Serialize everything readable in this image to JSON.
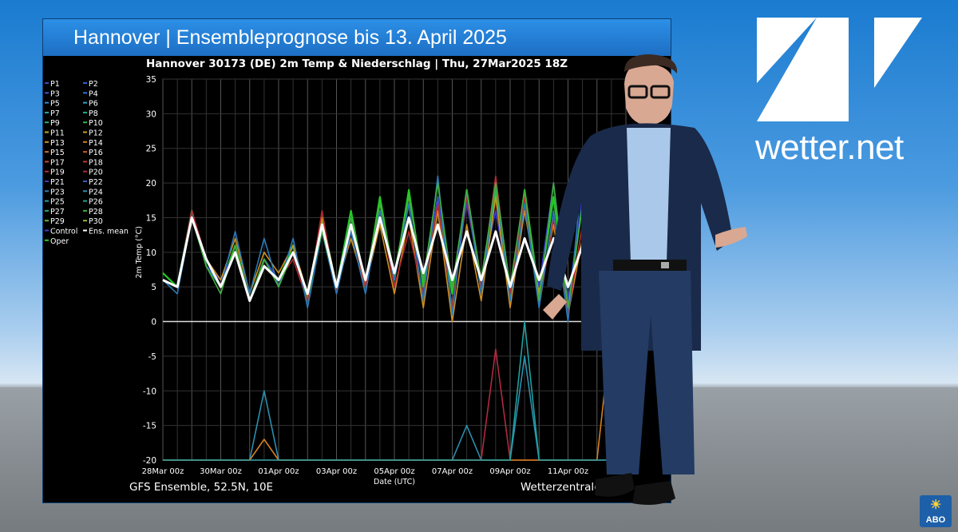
{
  "header": {
    "title": "Hannover | Ensembleprognose bis 13. April 2025"
  },
  "brand": {
    "logo_text": "wetter.net",
    "abo_label": "ABO",
    "accent": "#1d6fc4"
  },
  "footer": {
    "left": "GFS Ensemble, 52.5N, 10E",
    "right": "Wetterzentrale"
  },
  "chart_data": {
    "type": "line",
    "title": "Hannover 30173 (DE)  2m Temp & Niederschlag | Thu, 27Mar2025 18Z",
    "xlabel": "Date (UTC)",
    "ylabel": "2m Temp (°C)",
    "ylim": [
      -20,
      35
    ],
    "yticks": [
      35,
      30,
      25,
      20,
      15,
      10,
      5,
      0,
      -5,
      -10,
      -15,
      -20
    ],
    "xticks": [
      "28Mar 00z",
      "30Mar 00z",
      "01Apr 00z",
      "03Apr 00z",
      "05Apr 00z",
      "07Apr 00z",
      "09Apr 00z",
      "11Apr 00z"
    ],
    "grid": true,
    "legend_position": "left",
    "legend": [
      {
        "name": "P1",
        "color": "#3a46c8"
      },
      {
        "name": "P2",
        "color": "#2d5fd6"
      },
      {
        "name": "P3",
        "color": "#3a55d0"
      },
      {
        "name": "P4",
        "color": "#2a78d8"
      },
      {
        "name": "P5",
        "color": "#2c8ad8"
      },
      {
        "name": "P6",
        "color": "#2ba5c8"
      },
      {
        "name": "P7",
        "color": "#23a6b0"
      },
      {
        "name": "P8",
        "color": "#1eb090"
      },
      {
        "name": "P9",
        "color": "#22b070"
      },
      {
        "name": "P10",
        "color": "#2fb84a"
      },
      {
        "name": "P11",
        "color": "#b8b020"
      },
      {
        "name": "P12",
        "color": "#c8a020"
      },
      {
        "name": "P13",
        "color": "#d09020"
      },
      {
        "name": "P14",
        "color": "#d48020"
      },
      {
        "name": "P15",
        "color": "#d06a20"
      },
      {
        "name": "P16",
        "color": "#cc5a20"
      },
      {
        "name": "P17",
        "color": "#c84a20"
      },
      {
        "name": "P18",
        "color": "#c03a30"
      },
      {
        "name": "P19",
        "color": "#b82a30"
      },
      {
        "name": "P20",
        "color": "#b02a40"
      },
      {
        "name": "P21",
        "color": "#3a3ab8"
      },
      {
        "name": "P22",
        "color": "#3a60b8"
      },
      {
        "name": "P23",
        "color": "#2a7ab8"
      },
      {
        "name": "P24",
        "color": "#2a90b0"
      },
      {
        "name": "P25",
        "color": "#20a0a0"
      },
      {
        "name": "P26",
        "color": "#20a090"
      },
      {
        "name": "P27",
        "color": "#20a878"
      },
      {
        "name": "P28",
        "color": "#40b040"
      },
      {
        "name": "P29",
        "color": "#60b830"
      },
      {
        "name": "P30",
        "color": "#90b830"
      },
      {
        "name": "Control",
        "color": "#3a3ad8"
      },
      {
        "name": "Ens. mean",
        "color": "#ffffff"
      },
      {
        "name": "Oper",
        "color": "#22cc22"
      }
    ],
    "series": [
      {
        "name": "Ens. mean",
        "color": "#ffffff",
        "x": [
          0,
          0.5,
          1,
          1.5,
          2,
          2.5,
          3,
          3.5,
          4,
          4.5,
          5,
          5.5,
          6,
          6.5,
          7,
          7.5,
          8,
          8.5,
          9,
          9.5,
          10,
          10.5,
          11,
          11.5,
          12,
          12.5,
          13,
          13.5,
          14,
          14.5,
          15,
          15.5,
          16
        ],
        "y": [
          6,
          5,
          15,
          9,
          5,
          10,
          3,
          8,
          6,
          10,
          4,
          14,
          5,
          14,
          6,
          15,
          7,
          15,
          7,
          14,
          6,
          13,
          6,
          13,
          5,
          12,
          6,
          12,
          5,
          11,
          5,
          9,
          6
        ]
      },
      {
        "name": "Oper",
        "color": "#22cc22",
        "x": [
          0,
          0.5,
          1,
          1.5,
          2,
          2.5,
          3,
          3.5,
          4,
          4.5,
          5,
          5.5,
          6,
          6.5,
          7,
          7.5,
          8,
          8.5,
          9,
          9.5,
          10,
          10.5,
          11,
          11.5,
          12,
          12.5,
          13,
          13.5,
          14,
          14.5,
          15,
          15.5,
          16
        ],
        "y": [
          7,
          5,
          16,
          8,
          5,
          11,
          3,
          9,
          6,
          11,
          3,
          15,
          5,
          16,
          5,
          18,
          6,
          19,
          5,
          18,
          4,
          19,
          5,
          19,
          3,
          19,
          4,
          18,
          2,
          17,
          3,
          14,
          4
        ]
      },
      {
        "name": "Control",
        "color": "#3a3ad8",
        "x": [
          0,
          0.5,
          1,
          1.5,
          2,
          2.5,
          3,
          3.5,
          4,
          4.5,
          5,
          5.5,
          6,
          6.5,
          7,
          7.5,
          8,
          8.5,
          9,
          9.5,
          10,
          10.5,
          11,
          11.5,
          12,
          12.5,
          13,
          13.5,
          14,
          14.5,
          15,
          15.5,
          16
        ],
        "y": [
          6,
          5,
          16,
          8,
          6,
          10,
          3,
          9,
          6,
          10,
          4,
          14,
          5,
          15,
          6,
          16,
          7,
          15,
          6,
          18,
          5,
          17,
          6,
          16,
          4,
          16,
          5,
          20,
          3,
          18,
          4,
          13,
          5
        ]
      },
      {
        "name": "P13",
        "color": "#d09020",
        "x": [
          0,
          0.5,
          1,
          1.5,
          2,
          2.5,
          3,
          3.5,
          4,
          4.5,
          5,
          5.5,
          6,
          6.5,
          7,
          7.5,
          8,
          8.5,
          9,
          9.5,
          10,
          10.5,
          11,
          11.5,
          12,
          12.5,
          13,
          13.5,
          14,
          14.5,
          15,
          15.5,
          16
        ],
        "y": [
          6,
          5,
          15,
          9,
          6,
          12,
          4,
          10,
          7,
          11,
          4,
          15,
          5,
          12,
          5,
          14,
          4,
          15,
          2,
          16,
          0,
          14,
          3,
          18,
          2,
          16,
          4,
          14,
          1,
          12,
          0,
          16,
          2
        ]
      },
      {
        "name": "P19",
        "color": "#b82a30",
        "x": [
          0,
          0.5,
          1,
          1.5,
          2,
          2.5,
          3,
          3.5,
          4,
          4.5,
          5,
          5.5,
          6,
          6.5,
          7,
          7.5,
          8,
          8.5,
          9,
          9.5,
          10,
          10.5,
          11,
          11.5,
          12,
          12.5,
          13,
          13.5,
          14,
          14.5,
          15,
          15.5,
          16
        ],
        "y": [
          6,
          5,
          16,
          9,
          5,
          10,
          3,
          8,
          6,
          9,
          3,
          16,
          4,
          14,
          5,
          16,
          5,
          13,
          4,
          17,
          2,
          18,
          5,
          21,
          4,
          18,
          2,
          15,
          1,
          14,
          2,
          12,
          3
        ]
      },
      {
        "name": "P23",
        "color": "#2a7ab8",
        "x": [
          0,
          0.5,
          1,
          1.5,
          2,
          2.5,
          3,
          3.5,
          4,
          4.5,
          5,
          5.5,
          6,
          6.5,
          7,
          7.5,
          8,
          8.5,
          9,
          9.5,
          10,
          10.5,
          11,
          11.5,
          12,
          12.5,
          13,
          13.5,
          14,
          14.5,
          15,
          15.5,
          16
        ],
        "y": [
          6,
          4,
          15,
          8,
          5,
          13,
          4,
          12,
          5,
          12,
          2,
          13,
          4,
          13,
          4,
          16,
          6,
          17,
          3,
          21,
          1,
          19,
          4,
          20,
          3,
          17,
          2,
          16,
          0,
          22,
          1,
          14,
          4
        ]
      },
      {
        "name": "P28",
        "color": "#40b040",
        "x": [
          0,
          0.5,
          1,
          1.5,
          2,
          2.5,
          3,
          3.5,
          4,
          4.5,
          5,
          5.5,
          6,
          6.5,
          7,
          7.5,
          8,
          8.5,
          9,
          9.5,
          10,
          10.5,
          11,
          11.5,
          12,
          12.5,
          13,
          13.5,
          14,
          14.5,
          15,
          15.5,
          16
        ],
        "y": [
          6,
          5,
          15,
          8,
          4,
          11,
          3,
          9,
          5,
          10,
          4,
          13,
          5,
          15,
          6,
          17,
          7,
          18,
          6,
          20,
          5,
          19,
          6,
          20,
          5,
          19,
          3,
          20,
          2,
          17,
          3,
          20,
          4
        ]
      },
      {
        "name": "Niederschlag P24",
        "color": "#2a90b0",
        "x": [
          0,
          1,
          2,
          3,
          3.5,
          4,
          5,
          6,
          7,
          8,
          9,
          10,
          10.5,
          11,
          12,
          12.5,
          13,
          13.5,
          14,
          15,
          16
        ],
        "y": [
          -20,
          -20,
          -20,
          -20,
          -10,
          -20,
          -20,
          -20,
          -20,
          -20,
          -20,
          -20,
          -15,
          -20,
          -20,
          -5,
          -20,
          -20,
          -20,
          -20,
          -20
        ]
      },
      {
        "name": "Niederschlag P20",
        "color": "#b02a40",
        "x": [
          0,
          4,
          8,
          10,
          11,
          11.5,
          12,
          13,
          14,
          15,
          16
        ],
        "y": [
          -20,
          -20,
          -20,
          -20,
          -20,
          -4,
          -20,
          -20,
          -20,
          -20,
          -20
        ]
      },
      {
        "name": "Niederschlag P14",
        "color": "#d48020",
        "x": [
          0,
          2,
          3,
          3.5,
          4,
          9,
          10,
          11,
          12,
          13,
          14,
          15,
          15.5,
          16
        ],
        "y": [
          -20,
          -20,
          -20,
          -17,
          -20,
          -20,
          -20,
          -20,
          -20,
          -20,
          -20,
          -20,
          -1,
          -20
        ]
      },
      {
        "name": "Niederschlag P25",
        "color": "#20a0a0",
        "x": [
          0,
          6,
          8,
          9,
          11,
          12,
          12.5,
          13,
          16
        ],
        "y": [
          -20,
          -20,
          -20,
          -20,
          -20,
          -20,
          0,
          -20,
          -20
        ]
      }
    ]
  }
}
